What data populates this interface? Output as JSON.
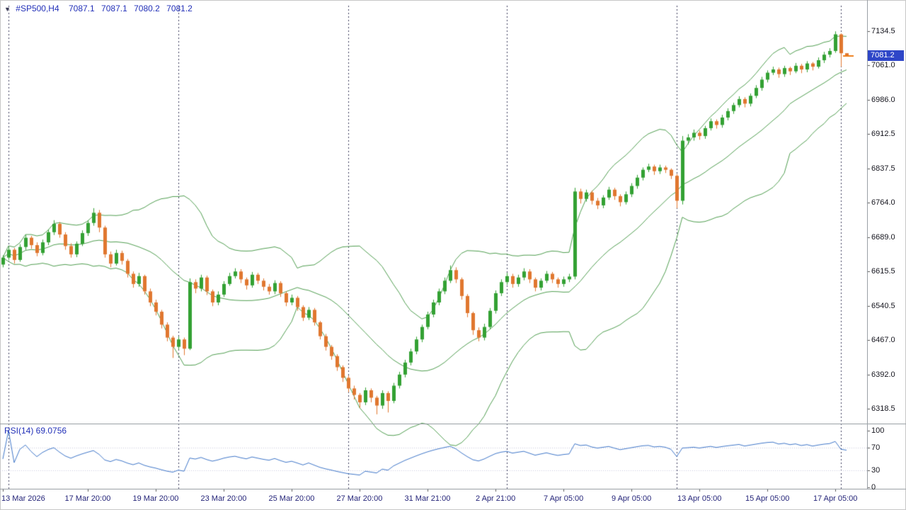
{
  "quote_bar": {
    "marker": "▼",
    "symbol": "#SP500,H4",
    "open": "7087.1",
    "high": "7087.1",
    "low": "7080.2",
    "close": "7081.2"
  },
  "rsi_panel": {
    "label": "RSI(14) 69.0756"
  },
  "chart_data": {
    "type": "candlestick",
    "title": "#SP500,H4",
    "timeframe": "H4",
    "price_range_top": 7190,
    "price_range_bottom": 6286,
    "current_price": 7081.2,
    "price_axis_labels": [
      "7134.5",
      "7061.0",
      "6986.0",
      "6912.5",
      "6837.5",
      "6764.0",
      "6689.0",
      "6615.5",
      "6540.5",
      "6467.0",
      "6392.0",
      "6318.5"
    ],
    "time_axis_labels": [
      {
        "text": "13 Mar 2026",
        "candle_index": 0
      },
      {
        "text": "17 Mar 20:00",
        "candle_index": 15
      },
      {
        "text": "19 Mar 20:00",
        "candle_index": 27
      },
      {
        "text": "23 Mar 20:00",
        "candle_index": 39
      },
      {
        "text": "25 Mar 20:00",
        "candle_index": 51
      },
      {
        "text": "27 Mar 20:00",
        "candle_index": 63
      },
      {
        "text": "31 Mar 21:00",
        "candle_index": 75
      },
      {
        "text": "2 Apr 21:00",
        "candle_index": 87
      },
      {
        "text": "7 Apr 05:00",
        "candle_index": 99
      },
      {
        "text": "9 Apr 05:00",
        "candle_index": 111
      },
      {
        "text": "13 Apr 05:00",
        "candle_index": 123
      },
      {
        "text": "15 Apr 05:00",
        "candle_index": 135
      },
      {
        "text": "17 Apr 05:00",
        "candle_index": 147
      }
    ],
    "separators_candle_index": [
      1,
      31,
      61,
      89,
      119,
      148
    ],
    "indicators": [
      {
        "name": "Bollinger Bands",
        "period": 20,
        "deviation": 2
      },
      {
        "name": "RSI",
        "period": 14,
        "current": 69.0756,
        "levels": [
          100,
          70,
          30,
          0
        ]
      }
    ],
    "colors": {
      "up": "#33a133",
      "down": "#e0772f",
      "bands": "#4f9d4f",
      "rsi_line": "#3f76c8",
      "separator": "#3c3c5c",
      "badge_bg": "#2e46c8",
      "last_price": "#ee7d17",
      "tick": "#555555",
      "rsi_level_line": "#c9c9dd"
    },
    "candles": [
      [
        6630,
        6650,
        6624,
        6645
      ],
      [
        6645,
        6668,
        6640,
        6662
      ],
      [
        6662,
        6666,
        6632,
        6640
      ],
      [
        6640,
        6674,
        6636,
        6668
      ],
      [
        6668,
        6694,
        6662,
        6688
      ],
      [
        6688,
        6692,
        6664,
        6672
      ],
      [
        6672,
        6678,
        6648,
        6655
      ],
      [
        6655,
        6684,
        6650,
        6678
      ],
      [
        6678,
        6706,
        6672,
        6700
      ],
      [
        6700,
        6726,
        6694,
        6718
      ],
      [
        6718,
        6722,
        6688,
        6695
      ],
      [
        6695,
        6700,
        6662,
        6670
      ],
      [
        6670,
        6676,
        6645,
        6652
      ],
      [
        6652,
        6680,
        6646,
        6675
      ],
      [
        6675,
        6704,
        6670,
        6698
      ],
      [
        6698,
        6726,
        6692,
        6720
      ],
      [
        6720,
        6752,
        6714,
        6742
      ],
      [
        6742,
        6748,
        6700,
        6710
      ],
      [
        6710,
        6714,
        6645,
        6652
      ],
      [
        6652,
        6658,
        6624,
        6632
      ],
      [
        6632,
        6662,
        6628,
        6655
      ],
      [
        6655,
        6660,
        6630,
        6638
      ],
      [
        6638,
        6642,
        6602,
        6610
      ],
      [
        6610,
        6615,
        6580,
        6588
      ],
      [
        6588,
        6612,
        6582,
        6605
      ],
      [
        6605,
        6608,
        6565,
        6572
      ],
      [
        6572,
        6578,
        6540,
        6548
      ],
      [
        6548,
        6554,
        6520,
        6528
      ],
      [
        6528,
        6532,
        6492,
        6500
      ],
      [
        6500,
        6505,
        6464,
        6472
      ],
      [
        6472,
        6476,
        6428,
        6452
      ],
      [
        6452,
        6474,
        6446,
        6468
      ],
      [
        6468,
        6472,
        6434,
        6448
      ],
      [
        6448,
        6600,
        6445,
        6592
      ],
      [
        6592,
        6598,
        6568,
        6578
      ],
      [
        6578,
        6608,
        6572,
        6602
      ],
      [
        6602,
        6606,
        6564,
        6572
      ],
      [
        6572,
        6576,
        6540,
        6548
      ],
      [
        6548,
        6572,
        6542,
        6565
      ],
      [
        6565,
        6594,
        6560,
        6588
      ],
      [
        6588,
        6612,
        6584,
        6605
      ],
      [
        6605,
        6622,
        6600,
        6615
      ],
      [
        6615,
        6620,
        6590,
        6598
      ],
      [
        6598,
        6602,
        6576,
        6585
      ],
      [
        6585,
        6614,
        6580,
        6608
      ],
      [
        6608,
        6612,
        6588,
        6595
      ],
      [
        6595,
        6600,
        6574,
        6582
      ],
      [
        6582,
        6588,
        6565,
        6572
      ],
      [
        6572,
        6596,
        6566,
        6590
      ],
      [
        6590,
        6594,
        6560,
        6568
      ],
      [
        6568,
        6572,
        6540,
        6548
      ],
      [
        6548,
        6565,
        6542,
        6558
      ],
      [
        6558,
        6562,
        6530,
        6538
      ],
      [
        6538,
        6542,
        6508,
        6515
      ],
      [
        6515,
        6538,
        6510,
        6532
      ],
      [
        6532,
        6536,
        6498,
        6505
      ],
      [
        6505,
        6508,
        6468,
        6475
      ],
      [
        6475,
        6480,
        6444,
        6452
      ],
      [
        6452,
        6456,
        6424,
        6432
      ],
      [
        6432,
        6436,
        6400,
        6408
      ],
      [
        6408,
        6412,
        6376,
        6385
      ],
      [
        6385,
        6390,
        6354,
        6362
      ],
      [
        6362,
        6368,
        6338,
        6348
      ],
      [
        6348,
        6352,
        6320,
        6332
      ],
      [
        6332,
        6364,
        6326,
        6358
      ],
      [
        6358,
        6362,
        6332,
        6342
      ],
      [
        6342,
        6346,
        6306,
        6325
      ],
      [
        6325,
        6358,
        6318,
        6352
      ],
      [
        6352,
        6356,
        6310,
        6335
      ],
      [
        6335,
        6374,
        6330,
        6368
      ],
      [
        6368,
        6398,
        6362,
        6392
      ],
      [
        6392,
        6424,
        6386,
        6418
      ],
      [
        6418,
        6448,
        6412,
        6442
      ],
      [
        6442,
        6474,
        6436,
        6468
      ],
      [
        6468,
        6500,
        6462,
        6495
      ],
      [
        6495,
        6528,
        6490,
        6522
      ],
      [
        6522,
        6554,
        6516,
        6548
      ],
      [
        6548,
        6578,
        6542,
        6572
      ],
      [
        6572,
        6602,
        6566,
        6595
      ],
      [
        6595,
        6628,
        6590,
        6618
      ],
      [
        6618,
        6624,
        6590,
        6598
      ],
      [
        6598,
        6602,
        6554,
        6562
      ],
      [
        6562,
        6566,
        6516,
        6525
      ],
      [
        6525,
        6528,
        6478,
        6488
      ],
      [
        6488,
        6494,
        6464,
        6472
      ],
      [
        6472,
        6502,
        6466,
        6495
      ],
      [
        6495,
        6536,
        6490,
        6530
      ],
      [
        6530,
        6574,
        6524,
        6568
      ],
      [
        6568,
        6598,
        6562,
        6592
      ],
      [
        6592,
        6612,
        6586,
        6605
      ],
      [
        6605,
        6610,
        6580,
        6588
      ],
      [
        6588,
        6608,
        6582,
        6602
      ],
      [
        6602,
        6622,
        6596,
        6615
      ],
      [
        6615,
        6620,
        6590,
        6598
      ],
      [
        6598,
        6602,
        6572,
        6580
      ],
      [
        6580,
        6600,
        6574,
        6595
      ],
      [
        6595,
        6616,
        6590,
        6610
      ],
      [
        6610,
        6614,
        6590,
        6598
      ],
      [
        6598,
        6602,
        6580,
        6588
      ],
      [
        6588,
        6604,
        6582,
        6598
      ],
      [
        6598,
        6610,
        6592,
        6604
      ],
      [
        6604,
        6796,
        6598,
        6788
      ],
      [
        6788,
        6794,
        6762,
        6772
      ],
      [
        6772,
        6792,
        6766,
        6786
      ],
      [
        6786,
        6790,
        6760,
        6768
      ],
      [
        6768,
        6774,
        6750,
        6758
      ],
      [
        6758,
        6780,
        6752,
        6775
      ],
      [
        6775,
        6798,
        6770,
        6792
      ],
      [
        6792,
        6796,
        6770,
        6778
      ],
      [
        6778,
        6782,
        6756,
        6765
      ],
      [
        6765,
        6788,
        6760,
        6782
      ],
      [
        6782,
        6806,
        6776,
        6800
      ],
      [
        6800,
        6824,
        6794,
        6818
      ],
      [
        6818,
        6840,
        6812,
        6835
      ],
      [
        6835,
        6848,
        6830,
        6842
      ],
      [
        6842,
        6846,
        6824,
        6832
      ],
      [
        6832,
        6846,
        6826,
        6840
      ],
      [
        6840,
        6844,
        6828,
        6835
      ],
      [
        6835,
        6838,
        6815,
        6822
      ],
      [
        6822,
        6826,
        6752,
        6768
      ],
      [
        6768,
        6908,
        6760,
        6898
      ],
      [
        6898,
        6912,
        6890,
        6905
      ],
      [
        6905,
        6922,
        6898,
        6915
      ],
      [
        6915,
        6920,
        6900,
        6908
      ],
      [
        6908,
        6930,
        6902,
        6925
      ],
      [
        6925,
        6946,
        6920,
        6940
      ],
      [
        6940,
        6944,
        6924,
        6932
      ],
      [
        6932,
        6954,
        6926,
        6948
      ],
      [
        6948,
        6968,
        6942,
        6962
      ],
      [
        6962,
        6980,
        6956,
        6975
      ],
      [
        6975,
        6994,
        6970,
        6988
      ],
      [
        6988,
        6992,
        6970,
        6978
      ],
      [
        6978,
        7000,
        6972,
        6995
      ],
      [
        6995,
        7018,
        6990,
        7012
      ],
      [
        7012,
        7036,
        7006,
        7030
      ],
      [
        7030,
        7050,
        7024,
        7045
      ],
      [
        7045,
        7058,
        7040,
        7052
      ],
      [
        7052,
        7056,
        7034,
        7042
      ],
      [
        7042,
        7060,
        7036,
        7055
      ],
      [
        7055,
        7058,
        7040,
        7048
      ],
      [
        7048,
        7066,
        7044,
        7060
      ],
      [
        7060,
        7064,
        7044,
        7052
      ],
      [
        7052,
        7070,
        7046,
        7065
      ],
      [
        7065,
        7068,
        7050,
        7058
      ],
      [
        7058,
        7078,
        7054,
        7072
      ],
      [
        7072,
        7090,
        7066,
        7084
      ],
      [
        7084,
        7098,
        7078,
        7092
      ],
      [
        7092,
        7134.5,
        7088,
        7128
      ],
      [
        7128,
        7130,
        7058,
        7087.1
      ],
      [
        7087.1,
        7087.1,
        7080.2,
        7081.2
      ]
    ]
  }
}
